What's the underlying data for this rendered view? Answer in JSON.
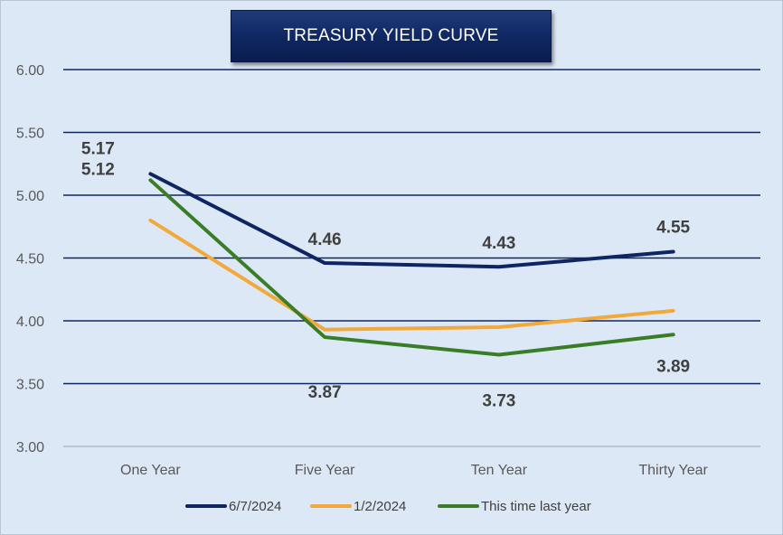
{
  "chart_data": {
    "type": "line",
    "title": "TREASURY YIELD CURVE",
    "categories": [
      "One Year",
      "Five Year",
      "Ten Year",
      "Thirty Year"
    ],
    "ylim": [
      3.0,
      6.0
    ],
    "yticks": [
      "3.00",
      "3.50",
      "4.00",
      "4.50",
      "5.00",
      "5.50",
      "6.00"
    ],
    "xlabel": "",
    "ylabel": "",
    "legend_position": "bottom",
    "series": [
      {
        "name": "6/7/2024",
        "color": "#0e2563",
        "values": [
          5.17,
          4.46,
          4.43,
          4.55
        ],
        "labels": [
          "5.17",
          "4.46",
          "4.43",
          "4.55"
        ]
      },
      {
        "name": "1/2/2024",
        "color": "#f2a93b",
        "values": [
          4.8,
          3.93,
          3.95,
          4.08
        ],
        "labels": [
          "",
          "",
          "",
          ""
        ]
      },
      {
        "name": "This time last year",
        "color": "#3a7d27",
        "values": [
          5.12,
          3.87,
          3.73,
          3.89
        ],
        "labels": [
          "5.12",
          "3.87",
          "3.73",
          "3.89"
        ]
      }
    ]
  }
}
